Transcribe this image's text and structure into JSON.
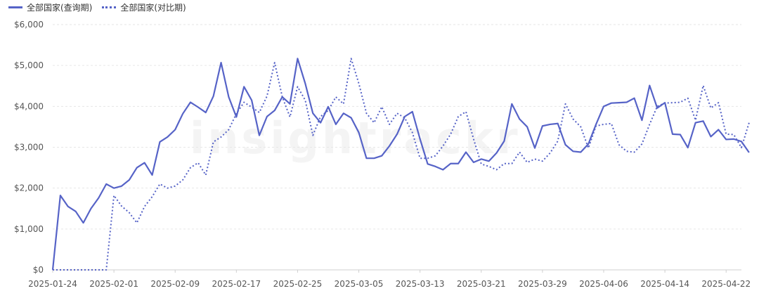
{
  "colors": {
    "series": "#5663c7",
    "grid": "#e6e6e6",
    "axis_text": "#555555"
  },
  "watermark": "insightrackr",
  "chart_data": {
    "type": "line",
    "title": "",
    "xlabel": "",
    "ylabel": "",
    "ylim": [
      0,
      6000
    ],
    "yticks": [
      0,
      1000,
      2000,
      3000,
      4000,
      5000,
      6000
    ],
    "ytick_labels": [
      "$0",
      "$1,000",
      "$2,000",
      "$3,000",
      "$4,000",
      "$5,000",
      "$6,000"
    ],
    "x_start": "2025-01-24",
    "x_end": "2025-04-24",
    "xtick_labels": [
      "2025-01-24",
      "2025-02-01",
      "2025-02-09",
      "2025-02-17",
      "2025-02-25",
      "2025-03-05",
      "2025-03-13",
      "2025-03-21",
      "2025-03-29",
      "2025-04-06",
      "2025-04-14",
      "2025-04-22"
    ],
    "grid": true,
    "legend": "top-left",
    "series": [
      {
        "name": "全部国家(查询期)",
        "style": "solid",
        "values": [
          0,
          1820,
          1550,
          1430,
          1150,
          1500,
          1760,
          2100,
          2000,
          2050,
          2200,
          2500,
          2620,
          2320,
          3130,
          3250,
          3430,
          3820,
          4100,
          3980,
          3850,
          4250,
          5070,
          4230,
          3740,
          4480,
          4150,
          3290,
          3750,
          3900,
          4230,
          4060,
          5170,
          4560,
          3830,
          3600,
          3990,
          3560,
          3830,
          3720,
          3360,
          2730,
          2730,
          2790,
          3030,
          3320,
          3750,
          3870,
          3200,
          2590,
          2530,
          2450,
          2600,
          2600,
          2880,
          2630,
          2710,
          2660,
          2860,
          3150,
          4060,
          3690,
          3500,
          2980,
          3520,
          3560,
          3580,
          3060,
          2900,
          2880,
          3080,
          3560,
          4000,
          4080,
          4090,
          4100,
          4200,
          3660,
          4510,
          3960,
          4090,
          3320,
          3310,
          2990,
          3600,
          3640,
          3260,
          3430,
          3190,
          3200,
          3140,
          2870
        ]
      },
      {
        "name": "全部国家(对比期)",
        "style": "dotted",
        "values": [
          0,
          0,
          0,
          0,
          0,
          0,
          0,
          0,
          1820,
          1560,
          1400,
          1150,
          1550,
          1790,
          2100,
          2000,
          2050,
          2200,
          2500,
          2620,
          2320,
          3130,
          3250,
          3430,
          3820,
          4100,
          3980,
          3850,
          4250,
          5070,
          4230,
          3740,
          4480,
          4150,
          3290,
          3750,
          3900,
          4230,
          4060,
          5170,
          4560,
          3830,
          3600,
          3990,
          3560,
          3830,
          3720,
          3360,
          2730,
          2730,
          2790,
          3030,
          3320,
          3750,
          3870,
          3200,
          2590,
          2530,
          2450,
          2600,
          2600,
          2880,
          2630,
          2710,
          2660,
          2860,
          3150,
          4060,
          3690,
          3500,
          2980,
          3520,
          3560,
          3580,
          3060,
          2900,
          2880,
          3080,
          3560,
          4000,
          4080,
          4090,
          4100,
          4200,
          3660,
          4510,
          3960,
          4090,
          3320,
          3310,
          2990,
          3600
        ]
      }
    ]
  }
}
